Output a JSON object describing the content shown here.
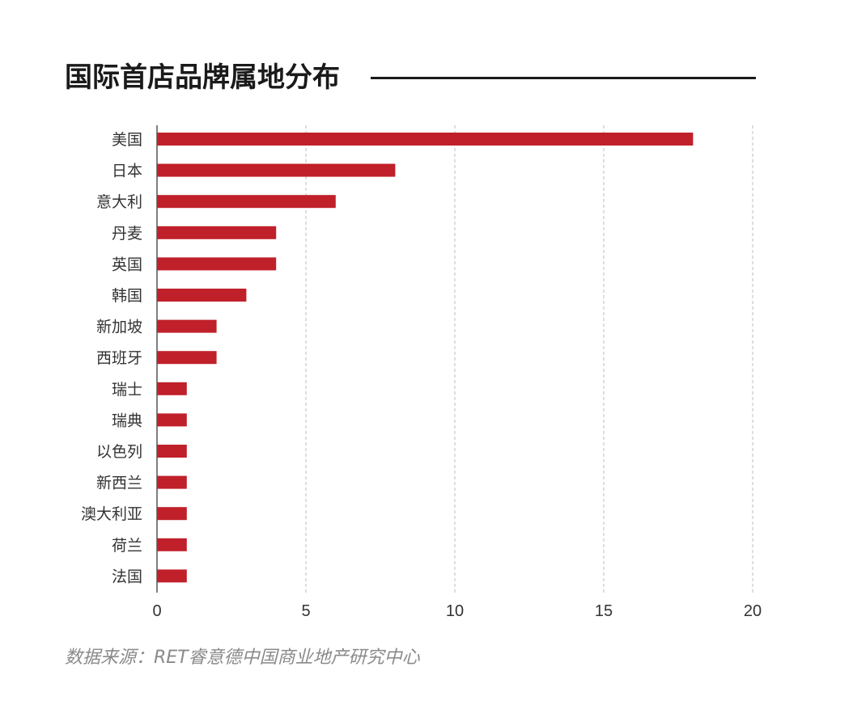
{
  "title": "国际首店品牌属地分布",
  "source": "数据来源：RET睿意德中国商业地产研究中心",
  "colors": {
    "bar": "#c0202a",
    "grid": "#bdbdbd",
    "axis": "#555555",
    "text": "#333333"
  },
  "chart_data": {
    "type": "bar",
    "orientation": "horizontal",
    "categories": [
      "美国",
      "日本",
      "意大利",
      "丹麦",
      "英国",
      "韩国",
      "新加坡",
      "西班牙",
      "瑞士",
      "瑞典",
      "以色列",
      "新西兰",
      "澳大利亚",
      "荷兰",
      "法国"
    ],
    "values": [
      18,
      8,
      6,
      4,
      4,
      3,
      2,
      2,
      1,
      1,
      1,
      1,
      1,
      1,
      1
    ],
    "xlim": [
      0,
      20
    ],
    "xticks": [
      0,
      5,
      10,
      15,
      20
    ],
    "grid": "vertical dashed"
  }
}
